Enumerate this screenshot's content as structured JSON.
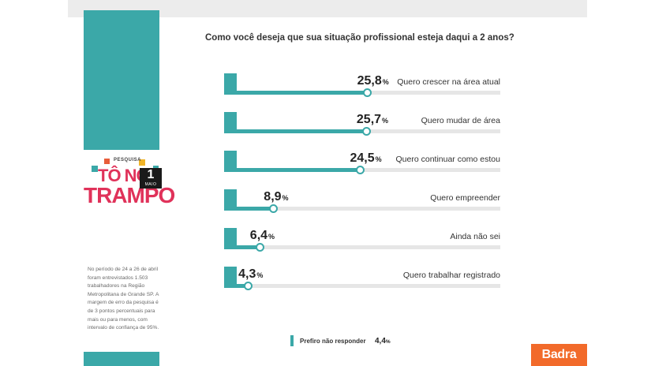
{
  "chart_data": {
    "type": "bar",
    "title": "Como você deseja que sua situação profissional esteja daqui a 2 anos?",
    "categories": [
      "Quero crescer na área atual",
      "Quero mudar de área",
      "Quero continuar como estou",
      "Quero empreender",
      "Ainda não sei",
      "Quero trabalhar registrado"
    ],
    "values": [
      25.8,
      25.7,
      24.5,
      8.9,
      6.4,
      4.3
    ],
    "value_labels": [
      "25,8",
      "25,7",
      "24,5",
      "8,9",
      "6,4",
      "4,3"
    ],
    "unit": "%",
    "ylim": [
      0,
      50
    ],
    "extra": {
      "label": "Prefiro não responder",
      "value": 4.4,
      "value_label": "4,4"
    },
    "accent_color": "#3ba8a8"
  },
  "logo": {
    "pesquisa": "PESQUISA",
    "line1": "TÔ NO",
    "line2": "TRAMPO",
    "day": "1",
    "month": "MAIO"
  },
  "methodology": "No período de 24 a 26 de abril foram entrevistados 1.503 trabalhadores na Região Metropolitana de Grande SP. A margem de erro da pesquisa é de 3 pontos percentuais para mais ou para menos, com intervalo de confiança de 95%.",
  "brand": "Badra",
  "colors": {
    "teal": "#3ba8a8",
    "brand_orange": "#f26a2a",
    "logo_pink": "#e0325a"
  }
}
